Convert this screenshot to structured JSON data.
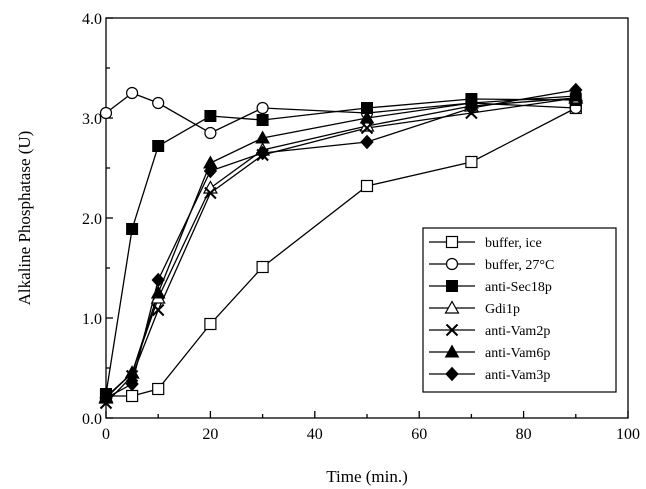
{
  "chart_data": {
    "type": "line",
    "xlabel": "Time (min.)",
    "ylabel": "Alkaline Phosphatase (U)",
    "xlim": [
      0,
      100
    ],
    "ylim": [
      0.0,
      4.0
    ],
    "xticks": [
      "0",
      "20",
      "40",
      "60",
      "80",
      "100"
    ],
    "yticks": [
      "0.0",
      "1.0",
      "2.0",
      "3.0",
      "4.0"
    ],
    "grid": false,
    "legend_position": "lower-right",
    "series": [
      {
        "name": "buffer, ice",
        "marker": "open-square",
        "x": [
          0,
          5,
          10,
          20,
          30,
          50,
          70,
          90
        ],
        "y": [
          0.22,
          0.22,
          0.29,
          0.94,
          1.51,
          2.32,
          2.56,
          3.1
        ]
      },
      {
        "name": "buffer, 27°C",
        "marker": "open-circle",
        "x": [
          0,
          5,
          10,
          20,
          30,
          50,
          70,
          90
        ],
        "y": [
          3.05,
          3.25,
          3.15,
          2.85,
          3.1,
          3.05,
          3.15,
          3.1
        ]
      },
      {
        "name": "anti-Sec18p",
        "marker": "filled-square",
        "x": [
          0,
          5,
          10,
          20,
          30,
          50,
          70,
          90
        ],
        "y": [
          0.24,
          1.89,
          2.72,
          3.02,
          2.98,
          3.1,
          3.19,
          3.18
        ]
      },
      {
        "name": "Gdi1p",
        "marker": "open-triangle",
        "x": [
          0,
          5,
          10,
          20,
          30,
          50,
          70,
          90
        ],
        "y": [
          0.2,
          0.45,
          1.2,
          2.3,
          2.68,
          2.92,
          3.12,
          3.2
        ]
      },
      {
        "name": "anti-Vam2p",
        "marker": "x",
        "x": [
          0,
          5,
          10,
          20,
          30,
          50,
          70,
          90
        ],
        "y": [
          0.15,
          0.42,
          1.08,
          2.25,
          2.63,
          2.9,
          3.05,
          3.2
        ]
      },
      {
        "name": "anti-Vam6p",
        "marker": "filled-triangle",
        "x": [
          0,
          5,
          10,
          20,
          30,
          50,
          70,
          90
        ],
        "y": [
          0.21,
          0.45,
          1.25,
          2.55,
          2.8,
          3.0,
          3.15,
          3.22
        ]
      },
      {
        "name": "anti-Vam3p",
        "marker": "filled-diamond",
        "x": [
          0,
          5,
          10,
          20,
          30,
          50,
          70,
          90
        ],
        "y": [
          0.2,
          0.34,
          1.38,
          2.47,
          2.65,
          2.76,
          3.1,
          3.28
        ]
      }
    ]
  }
}
